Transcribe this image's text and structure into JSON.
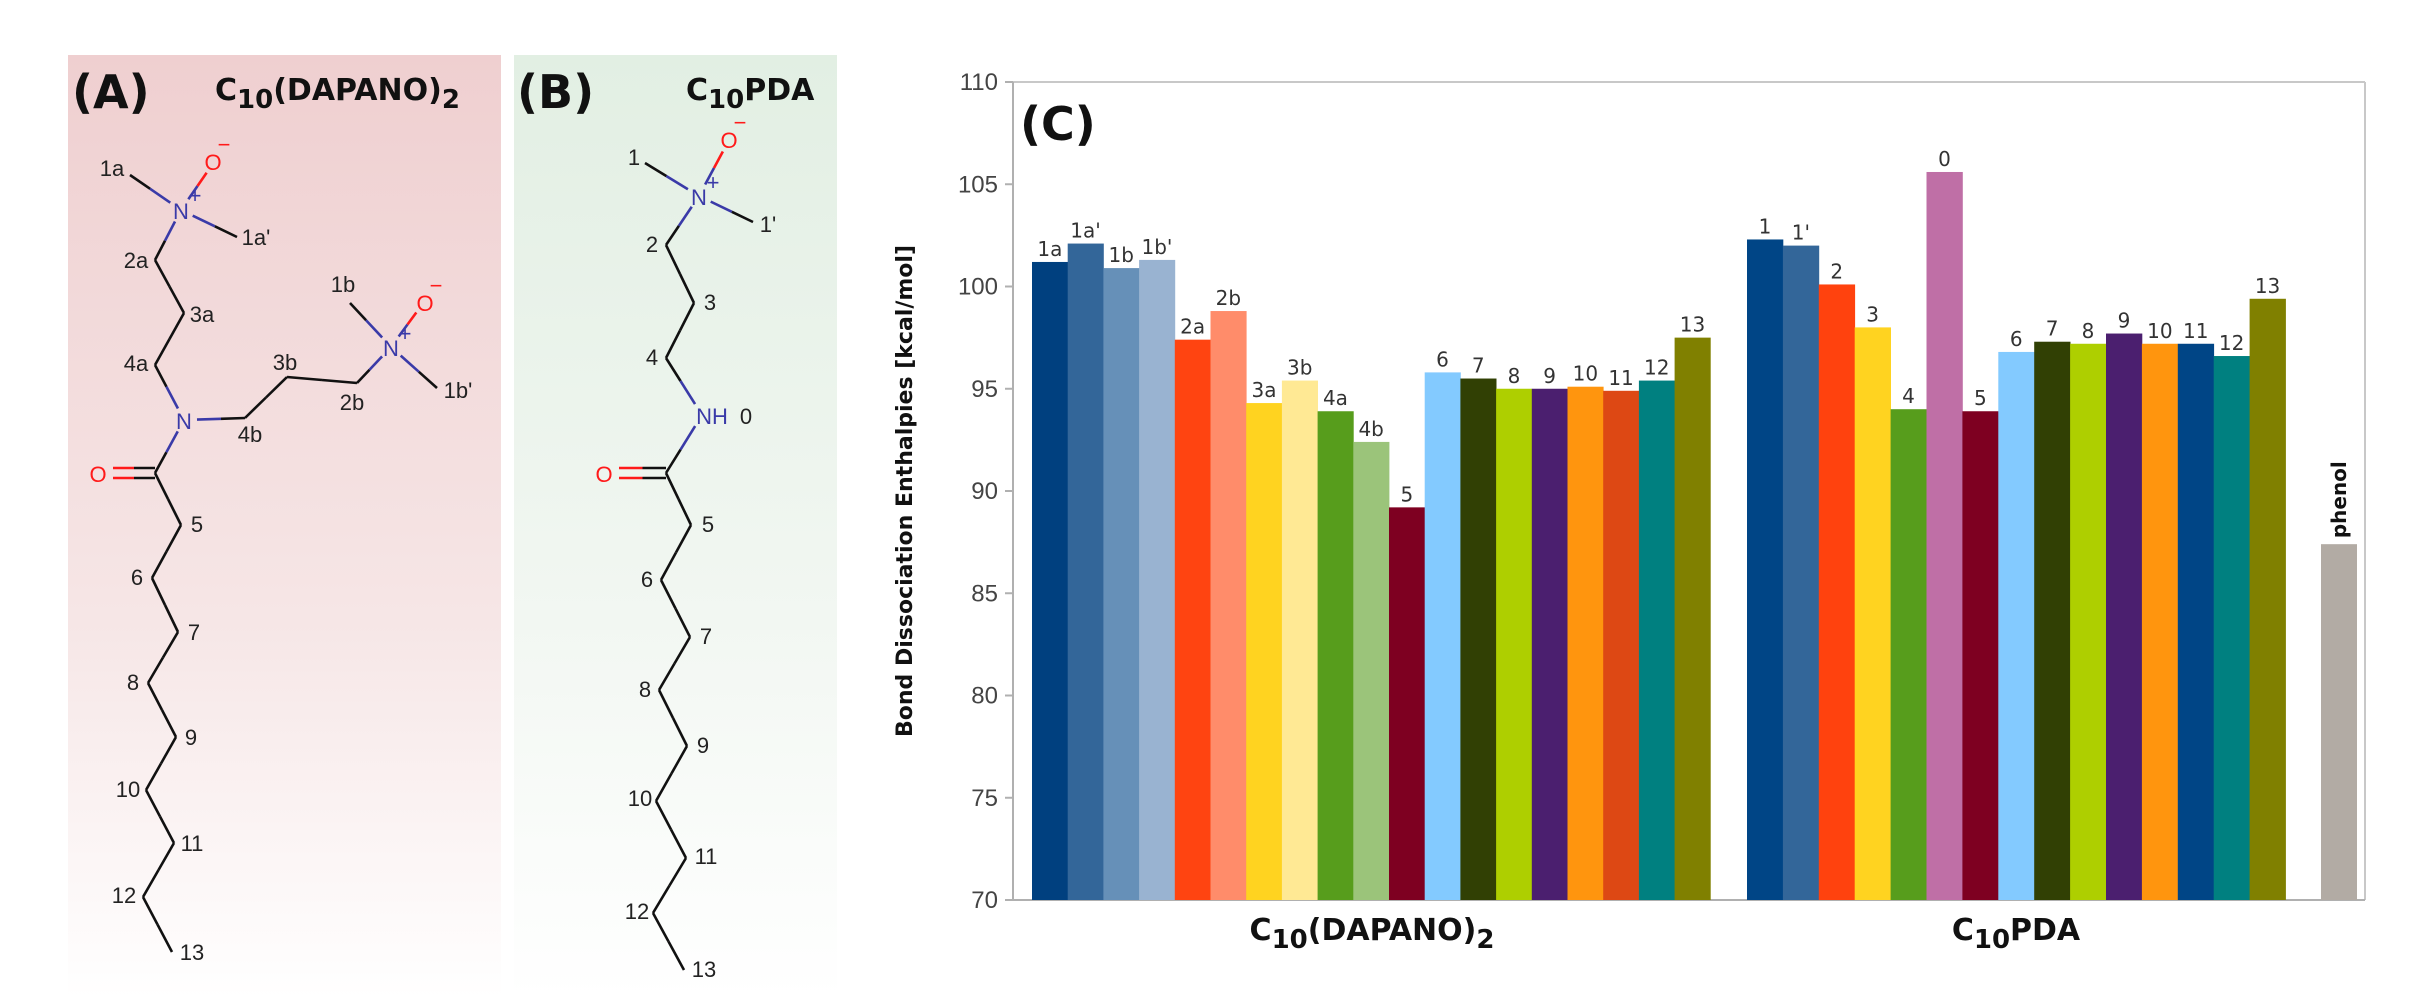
{
  "panel_a": {
    "tag": "(A)",
    "formula": {
      "c": "C",
      "n": "10",
      "mid": "(DAPANO)",
      "sub": "2"
    },
    "labels": [
      "1a",
      "1a'",
      "2a",
      "3a",
      "4a",
      "4b",
      "3b",
      "2b",
      "1b",
      "1b'",
      "5",
      "6",
      "7",
      "8",
      "9",
      "10",
      "11",
      "12",
      "13"
    ],
    "hetero": [
      "N",
      "+",
      "O",
      "−",
      "N",
      "N",
      "+",
      "O",
      "−",
      "O"
    ]
  },
  "panel_b": {
    "tag": "(B)",
    "formula": {
      "c": "C",
      "n": "10",
      "mid": "PDA"
    },
    "labels": [
      "1",
      "1'",
      "2",
      "3",
      "4",
      "0",
      "5",
      "6",
      "7",
      "8",
      "9",
      "10",
      "11",
      "12",
      "13"
    ],
    "hetero": [
      "N",
      "+",
      "O",
      "−",
      "NH",
      "O"
    ]
  },
  "chart_data": {
    "type": "bar",
    "panel_tag": "(C)",
    "ylabel": "Bond Dissociation Enthalpies [kcal/mol]",
    "ylim": [
      70,
      110
    ],
    "yticks": [
      70,
      75,
      80,
      85,
      90,
      95,
      100,
      105,
      110
    ],
    "grid": false,
    "groups": [
      {
        "name": {
          "c": "C",
          "n": "10",
          "mid": "(DAPANO)",
          "sub": "2"
        },
        "bars": [
          {
            "label": "1a",
            "value": 101.2,
            "color": "#00407f"
          },
          {
            "label": "1a'",
            "value": 102.1,
            "color": "#336699"
          },
          {
            "label": "1b",
            "value": 100.9,
            "color": "#6690b8"
          },
          {
            "label": "1b'",
            "value": 101.3,
            "color": "#99b3d1"
          },
          {
            "label": "2a",
            "value": 97.4,
            "color": "#ff4411"
          },
          {
            "label": "2b",
            "value": 98.8,
            "color": "#ff8c6a"
          },
          {
            "label": "3a",
            "value": 94.3,
            "color": "#ffd320"
          },
          {
            "label": "3b",
            "value": 95.4,
            "color": "#ffe994"
          },
          {
            "label": "4a",
            "value": 93.9,
            "color": "#579d1c"
          },
          {
            "label": "4b",
            "value": 92.4,
            "color": "#9bc47a"
          },
          {
            "label": "5",
            "value": 89.2,
            "color": "#7e0021"
          },
          {
            "label": "6",
            "value": 95.8,
            "color": "#83caff"
          },
          {
            "label": "7",
            "value": 95.5,
            "color": "#314004"
          },
          {
            "label": "8",
            "value": 95.0,
            "color": "#aecf00"
          },
          {
            "label": "9",
            "value": 95.0,
            "color": "#4b1f6f"
          },
          {
            "label": "10",
            "value": 95.1,
            "color": "#ff950e"
          },
          {
            "label": "11",
            "value": 94.9,
            "color": "#dd4814"
          },
          {
            "label": "12",
            "value": 95.4,
            "color": "#008080"
          },
          {
            "label": "13",
            "value": 97.5,
            "color": "#808000"
          }
        ]
      },
      {
        "name": {
          "c": "C",
          "n": "10",
          "mid": "PDA"
        },
        "bars": [
          {
            "label": "1",
            "value": 102.3,
            "color": "#004586"
          },
          {
            "label": "1'",
            "value": 102.0,
            "color": "#336699"
          },
          {
            "label": "2",
            "value": 100.1,
            "color": "#ff420e"
          },
          {
            "label": "3",
            "value": 98.0,
            "color": "#ffd320"
          },
          {
            "label": "4",
            "value": 94.0,
            "color": "#579d1c"
          },
          {
            "label": "0",
            "value": 105.6,
            "color": "#bf6fa6"
          },
          {
            "label": "5",
            "value": 93.9,
            "color": "#7e0021"
          },
          {
            "label": "6",
            "value": 96.8,
            "color": "#83caff"
          },
          {
            "label": "7",
            "value": 97.3,
            "color": "#314004"
          },
          {
            "label": "8",
            "value": 97.2,
            "color": "#aecf00"
          },
          {
            "label": "9",
            "value": 97.7,
            "color": "#4b1f6f"
          },
          {
            "label": "10",
            "value": 97.2,
            "color": "#ff950e"
          },
          {
            "label": "11",
            "value": 97.2,
            "color": "#004586"
          },
          {
            "label": "12",
            "value": 96.6,
            "color": "#008080"
          },
          {
            "label": "13",
            "value": 99.4,
            "color": "#808000"
          }
        ]
      }
    ],
    "reference": {
      "label": "phenol",
      "value": 87.4,
      "color": "#b2aba4"
    }
  }
}
